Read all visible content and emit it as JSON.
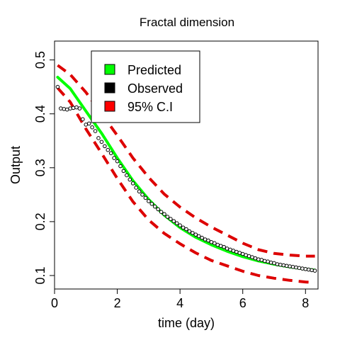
{
  "chart_data": {
    "type": "line",
    "title": "Fractal dimension",
    "xlabel": "time (day)",
    "ylabel": "Output",
    "xlim": [
      0,
      8.4
    ],
    "ylim": [
      0.075,
      0.535
    ],
    "xticks": [
      0,
      2,
      4,
      6,
      8
    ],
    "xtick_labels": [
      "0",
      "2",
      "4",
      "6",
      "8"
    ],
    "yticks": [
      0.1,
      0.2,
      0.3,
      0.4,
      0.5
    ],
    "ytick_labels": [
      "0.1",
      "0.2",
      "0.3",
      "0.4",
      "0.5"
    ],
    "grid": false,
    "legend_position": "top-left",
    "legend": [
      {
        "label": "Predicted",
        "color": "#00ff00"
      },
      {
        "label": "Observed",
        "color": "#000000"
      },
      {
        "label": "95% C.I",
        "color": "#ff0000"
      }
    ],
    "colors": {
      "predicted": "#00ff00",
      "observed": "#000000",
      "ci": "#dd0000"
    },
    "series": [
      {
        "name": "Predicted",
        "style": "solid",
        "x": [
          0.1,
          0.5,
          1.0,
          1.5,
          2.0,
          2.5,
          3.0,
          3.5,
          4.0,
          4.5,
          5.0,
          5.5,
          6.0,
          6.5,
          7.0,
          7.5,
          8.0,
          8.3
        ],
        "y": [
          0.468,
          0.447,
          0.405,
          0.364,
          0.318,
          0.276,
          0.241,
          0.212,
          0.189,
          0.171,
          0.157,
          0.145,
          0.135,
          0.127,
          0.121,
          0.116,
          0.112,
          0.11
        ]
      },
      {
        "name": "Observed",
        "style": "points",
        "x": [
          0.1,
          0.2,
          0.3,
          0.4,
          0.5,
          0.6,
          0.7,
          0.8,
          0.9,
          1.0,
          1.1,
          1.2,
          1.3,
          1.4,
          1.5,
          1.6,
          1.7,
          1.8,
          1.9,
          2.0,
          2.1,
          2.2,
          2.3,
          2.4,
          2.5,
          2.6,
          2.7,
          2.8,
          2.9,
          3.0,
          3.1,
          3.2,
          3.3,
          3.4,
          3.5,
          3.6,
          3.7,
          3.8,
          3.9,
          4.0,
          4.1,
          4.2,
          4.3,
          4.4,
          4.5,
          4.6,
          4.7,
          4.8,
          4.9,
          5.0,
          5.1,
          5.2,
          5.3,
          5.4,
          5.5,
          5.6,
          5.7,
          5.8,
          5.9,
          6.0,
          6.1,
          6.2,
          6.3,
          6.4,
          6.5,
          6.6,
          6.7,
          6.8,
          6.9,
          7.0,
          7.1,
          7.2,
          7.3,
          7.4,
          7.5,
          7.6,
          7.7,
          7.8,
          7.9,
          8.0,
          8.1,
          8.2,
          8.3
        ],
        "y": [
          0.45,
          0.41,
          0.409,
          0.408,
          0.41,
          0.411,
          0.412,
          0.41,
          0.39,
          0.38,
          0.382,
          0.375,
          0.368,
          0.355,
          0.348,
          0.34,
          0.333,
          0.327,
          0.318,
          0.312,
          0.303,
          0.294,
          0.286,
          0.278,
          0.271,
          0.263,
          0.256,
          0.25,
          0.244,
          0.238,
          0.233,
          0.228,
          0.223,
          0.218,
          0.214,
          0.209,
          0.205,
          0.201,
          0.197,
          0.193,
          0.189,
          0.186,
          0.182,
          0.179,
          0.176,
          0.173,
          0.17,
          0.167,
          0.165,
          0.162,
          0.16,
          0.157,
          0.155,
          0.153,
          0.15,
          0.148,
          0.146,
          0.144,
          0.142,
          0.14,
          0.138,
          0.136,
          0.134,
          0.132,
          0.13,
          0.129,
          0.127,
          0.126,
          0.124,
          0.123,
          0.121,
          0.12,
          0.119,
          0.118,
          0.117,
          0.116,
          0.115,
          0.114,
          0.113,
          0.112,
          0.111,
          0.11,
          0.109
        ]
      },
      {
        "name": "95% C.I",
        "style": "dashed",
        "x": [
          0.1,
          0.5,
          1.0,
          1.5,
          2.0,
          2.5,
          3.0,
          3.5,
          4.0,
          4.5,
          5.0,
          5.5,
          6.0,
          6.5,
          7.0,
          7.5,
          8.0,
          8.3
        ],
        "y": [
          0.49,
          0.473,
          0.44,
          0.4,
          0.36,
          0.318,
          0.282,
          0.251,
          0.227,
          0.207,
          0.19,
          0.175,
          0.16,
          0.148,
          0.141,
          0.138,
          0.136,
          0.136
        ]
      },
      {
        "name": "95% C.I",
        "style": "dashed",
        "x": [
          0.1,
          0.5,
          1.0,
          1.5,
          2.0,
          2.5,
          3.0,
          3.5,
          4.0,
          4.5,
          5.0,
          5.5,
          6.0,
          6.5,
          7.0,
          7.5,
          8.0,
          8.3
        ],
        "y": [
          0.448,
          0.422,
          0.372,
          0.327,
          0.28,
          0.237,
          0.203,
          0.178,
          0.159,
          0.142,
          0.128,
          0.118,
          0.108,
          0.1,
          0.095,
          0.091,
          0.088,
          0.087
        ]
      }
    ]
  }
}
